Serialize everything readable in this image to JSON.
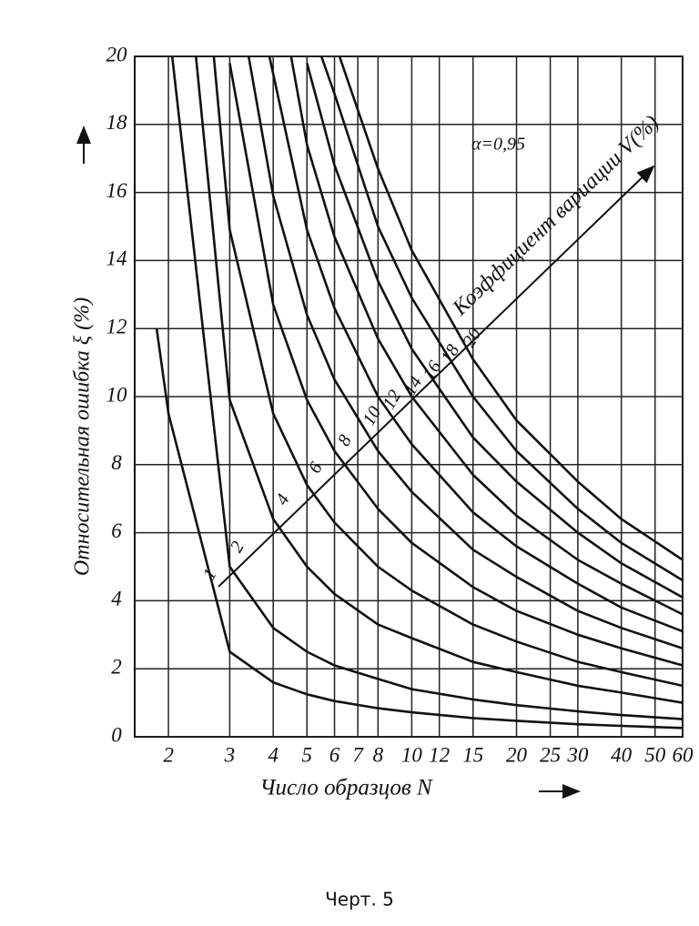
{
  "chart_data": {
    "type": "line",
    "y_label": "Относительная ошибка ξ (%)",
    "x_label": "Число образцов N",
    "annotation": "α=0,95",
    "legend_title": "Коэффициент вариации V(%)",
    "caption": "Черт. 5",
    "log_x": true,
    "grid": true,
    "xlim": [
      1.6,
      60
    ],
    "xticks": [
      2,
      3,
      4,
      5,
      6,
      7,
      8,
      10,
      12,
      15,
      20,
      25,
      30,
      40,
      50,
      60
    ],
    "ylim": [
      0,
      20
    ],
    "yticks": [
      0,
      2,
      4,
      6,
      8,
      10,
      12,
      14,
      16,
      18,
      20
    ],
    "series": [
      {
        "name": "1",
        "color": "#111111",
        "x": [
          1.85,
          2,
          3,
          4,
          5,
          6,
          8,
          10,
          15,
          20,
          30,
          40,
          60
        ],
        "values": [
          12,
          9.5,
          2.5,
          1.6,
          1.25,
          1.05,
          0.84,
          0.72,
          0.55,
          0.47,
          0.37,
          0.32,
          0.26
        ]
      },
      {
        "name": "2",
        "color": "#111111",
        "x": [
          2.05,
          3,
          4,
          5,
          6,
          8,
          10,
          15,
          20,
          30,
          40,
          60
        ],
        "values": [
          20,
          5.0,
          3.2,
          2.5,
          2.1,
          1.7,
          1.4,
          1.1,
          0.93,
          0.75,
          0.64,
          0.52
        ]
      },
      {
        "name": "4",
        "color": "#111111",
        "x": [
          2.4,
          3,
          4,
          5,
          6,
          8,
          10,
          15,
          20,
          30,
          40,
          60
        ],
        "values": [
          20,
          9.9,
          6.4,
          5.0,
          4.2,
          3.3,
          2.9,
          2.2,
          1.9,
          1.5,
          1.3,
          1.0
        ]
      },
      {
        "name": "6",
        "color": "#111111",
        "x": [
          2.7,
          3,
          4,
          5,
          6,
          8,
          10,
          15,
          20,
          30,
          40,
          60
        ],
        "values": [
          20,
          14.9,
          9.5,
          7.4,
          6.3,
          5.0,
          4.3,
          3.3,
          2.8,
          2.2,
          1.9,
          1.5
        ]
      },
      {
        "name": "8",
        "color": "#111111",
        "x": [
          3,
          4,
          5,
          6,
          8,
          10,
          15,
          20,
          30,
          40,
          60
        ],
        "values": [
          19.8,
          12.7,
          9.9,
          8.4,
          6.7,
          5.7,
          4.4,
          3.7,
          3.0,
          2.6,
          2.1
        ]
      },
      {
        "name": "10",
        "color": "#111111",
        "x": [
          3.4,
          4,
          5,
          6,
          8,
          10,
          15,
          20,
          30,
          40,
          60
        ],
        "values": [
          20,
          15.9,
          12.4,
          10.5,
          8.4,
          7.2,
          5.5,
          4.7,
          3.7,
          3.2,
          2.6
        ]
      },
      {
        "name": "12",
        "color": "#111111",
        "x": [
          3.9,
          5,
          6,
          8,
          10,
          15,
          20,
          30,
          40,
          60
        ],
        "values": [
          20,
          14.9,
          12.6,
          10.0,
          8.6,
          6.6,
          5.6,
          4.5,
          3.8,
          3.1
        ]
      },
      {
        "name": "14",
        "color": "#111111",
        "x": [
          4.5,
          5,
          6,
          8,
          10,
          15,
          20,
          30,
          40,
          60
        ],
        "values": [
          20,
          17.4,
          14.7,
          11.7,
          10.0,
          7.7,
          6.5,
          5.2,
          4.5,
          3.6
        ]
      },
      {
        "name": "16",
        "color": "#111111",
        "x": [
          5,
          6,
          8,
          10,
          15,
          20,
          30,
          40,
          60
        ],
        "values": [
          19.8,
          16.8,
          13.4,
          11.4,
          8.8,
          7.5,
          6.0,
          5.1,
          4.1
        ]
      },
      {
        "name": "18",
        "color": "#111111",
        "x": [
          5.5,
          6,
          8,
          10,
          15,
          20,
          30,
          40,
          60
        ],
        "values": [
          20,
          18.9,
          15.0,
          12.9,
          10.0,
          8.4,
          6.7,
          5.7,
          4.6
        ]
      },
      {
        "name": "20",
        "color": "#111111",
        "x": [
          6.2,
          8,
          10,
          15,
          20,
          30,
          40,
          60
        ],
        "values": [
          20,
          16.7,
          14.3,
          11.1,
          9.3,
          7.5,
          6.4,
          5.2
        ]
      }
    ]
  }
}
